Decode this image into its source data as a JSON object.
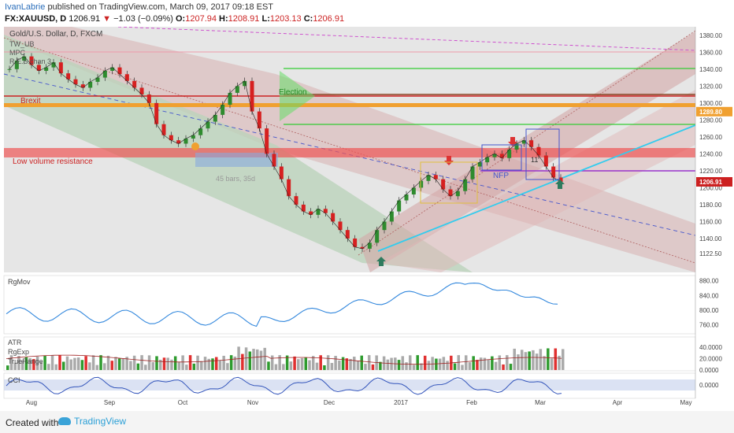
{
  "header": {
    "author": "IvanLabrie",
    "published": "published on TradingView.com, March 09, 2017 09:18 EST",
    "symbol": "FX:XAUUSD, D",
    "last": "1206.91",
    "change_arrow": "▼",
    "change": "−1.03 (−0.09%)",
    "open_label": "O:",
    "open": "1207.94",
    "high_label": "H:",
    "high": "1208.91",
    "low_label": "L:",
    "low": "1203.13",
    "close_label": "C:",
    "close": "1206.91"
  },
  "legend": {
    "title": "Gold/U.S. Dollar, D, FXCM",
    "items": [
      "TW_UB",
      "MPC",
      "R.E.S.chan 3"
    ]
  },
  "annotations": {
    "brexit": "Brexit",
    "low_volume": "Low volume resistance",
    "election": "Election",
    "bars": "45 bars, 35d",
    "nfp": "NFP",
    "eleven": "11"
  },
  "panels": {
    "rgmov": "RgMov",
    "atr": "ATR",
    "rgexp": "RgExp",
    "truerange": "TrueRange",
    "cci": "CCI"
  },
  "footer": {
    "created_with": "Created with",
    "brand": "TradingView"
  },
  "colors": {
    "bull": "#2e8b2e",
    "bear": "#d62020",
    "price_label": "#cc2020",
    "orange_label": "#f0a030",
    "cyan": "#33ccee",
    "purple": "#9933cc",
    "rgmov": "#3388dd",
    "cci": "#3355bb"
  },
  "chart_data": {
    "type": "line",
    "x_ticks": [
      "Aug",
      "Sep",
      "Oct",
      "Nov",
      "Dec",
      "2017",
      "Feb",
      "Mar",
      "Apr",
      "May"
    ],
    "price_axis": {
      "ticks": [
        "1380.00",
        "1360.00",
        "1340.00",
        "1320.00",
        "1300.00",
        "1280.00",
        "1260.00",
        "1240.00",
        "1220.00",
        "1200.00",
        "1180.00",
        "1160.00",
        "1140.00",
        "1122.50"
      ],
      "highlight_labels": [
        {
          "text": "1289.80",
          "value": 1289.8,
          "color": "#f0a030"
        },
        {
          "text": "1206.91",
          "value": 1206.91,
          "color": "#cc2020"
        }
      ],
      "ylim": [
        1100,
        1390
      ]
    },
    "price_series": {
      "name": "XAUUSD",
      "values": [
        1340,
        1350,
        1355,
        1345,
        1338,
        1342,
        1348,
        1335,
        1328,
        1322,
        1318,
        1325,
        1330,
        1338,
        1342,
        1334,
        1326,
        1318,
        1310,
        1300,
        1275,
        1262,
        1256,
        1252,
        1258,
        1262,
        1270,
        1278,
        1286,
        1298,
        1312,
        1320,
        1326,
        1290,
        1270,
        1240,
        1225,
        1210,
        1190,
        1180,
        1172,
        1168,
        1175,
        1170,
        1160,
        1150,
        1140,
        1130,
        1128,
        1135,
        1150,
        1160,
        1172,
        1185,
        1192,
        1200,
        1208,
        1215,
        1210,
        1198,
        1190,
        1196,
        1210,
        1225,
        1230,
        1236,
        1240,
        1235,
        1245,
        1252,
        1256,
        1248,
        1238,
        1225,
        1212,
        1206.91
      ]
    },
    "rgmov": {
      "ticks": [
        "880.00",
        "840.00",
        "800.00",
        "760.00"
      ],
      "ylim": [
        740,
        890
      ]
    },
    "atr_panel": {
      "ticks": [
        "40.0000",
        "20.0000",
        "0.0000"
      ],
      "ylim": [
        0,
        55
      ]
    },
    "cci_panel": {
      "ticks": [
        "0.0000"
      ]
    }
  }
}
